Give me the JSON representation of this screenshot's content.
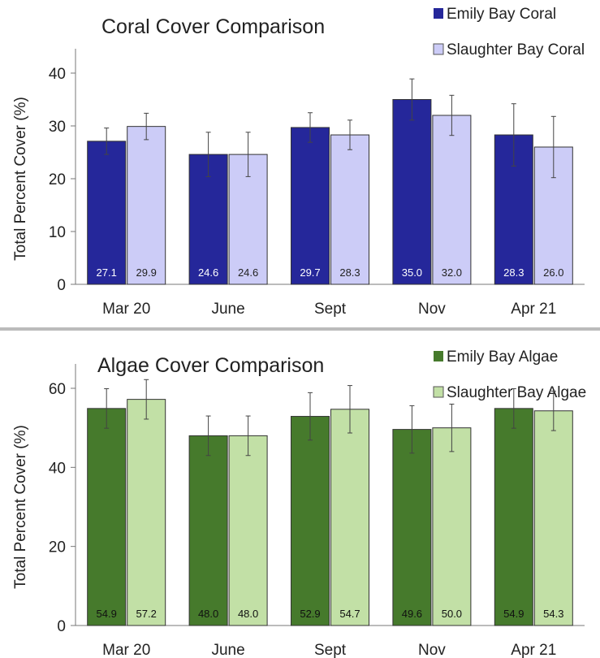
{
  "chart_data": [
    {
      "type": "bar",
      "title": "Coral Cover Comparison",
      "ylabel": "Total Percent Cover  (%)",
      "xlabel": "",
      "categories": [
        "Mar 20",
        "June",
        "Sept",
        "Nov",
        "Apr 21"
      ],
      "ylim": [
        0,
        40
      ],
      "yticks": [
        0,
        10,
        20,
        30,
        40
      ],
      "legend_position": "top-right",
      "series": [
        {
          "name": "Emily Bay Coral",
          "color": "#25279a",
          "label_color": "#ffffff",
          "values": [
            27.1,
            24.6,
            29.7,
            35.0,
            28.3
          ],
          "value_labels": [
            "27.1",
            "24.6",
            "29.7",
            "35.0",
            "28.3"
          ],
          "error": [
            2.5,
            4.2,
            2.8,
            3.9,
            5.9
          ]
        },
        {
          "name": "Slaughter Bay Coral",
          "color": "#ccccf7",
          "label_color": "#222222",
          "values": [
            29.9,
            24.6,
            28.3,
            32.0,
            26.0
          ],
          "value_labels": [
            "29.9",
            "24.6",
            "28.3",
            "32.0",
            "26.0"
          ],
          "error": [
            2.5,
            4.2,
            2.8,
            3.8,
            5.8
          ]
        }
      ]
    },
    {
      "type": "bar",
      "title": "Algae Cover Comparison",
      "ylabel": "Total Percent Cover  (%)",
      "xlabel": "",
      "categories": [
        "Mar 20",
        "June",
        "Sept",
        "Nov",
        "Apr 21"
      ],
      "ylim": [
        0,
        70
      ],
      "yticks": [
        0,
        20,
        40,
        60
      ],
      "legend_position": "top-right",
      "series": [
        {
          "name": "Emily Bay Algae",
          "color": "#467a2c",
          "label_color": "#111111",
          "values": [
            54.9,
            48.0,
            52.9,
            49.6,
            54.9
          ],
          "value_labels": [
            "54.9",
            "48.0",
            "52.9",
            "49.6",
            "54.9"
          ],
          "error": [
            5.0,
            5.0,
            6.0,
            6.0,
            5.0
          ]
        },
        {
          "name": "Slaughter Bay Algae",
          "color": "#c2e0a6",
          "label_color": "#111111",
          "values": [
            57.2,
            48.0,
            54.7,
            50.0,
            54.3
          ],
          "value_labels": [
            "57.2",
            "48.0",
            "54.7",
            "50.0",
            "54.3"
          ],
          "error": [
            5.0,
            5.0,
            6.0,
            6.0,
            5.0
          ]
        }
      ]
    }
  ]
}
